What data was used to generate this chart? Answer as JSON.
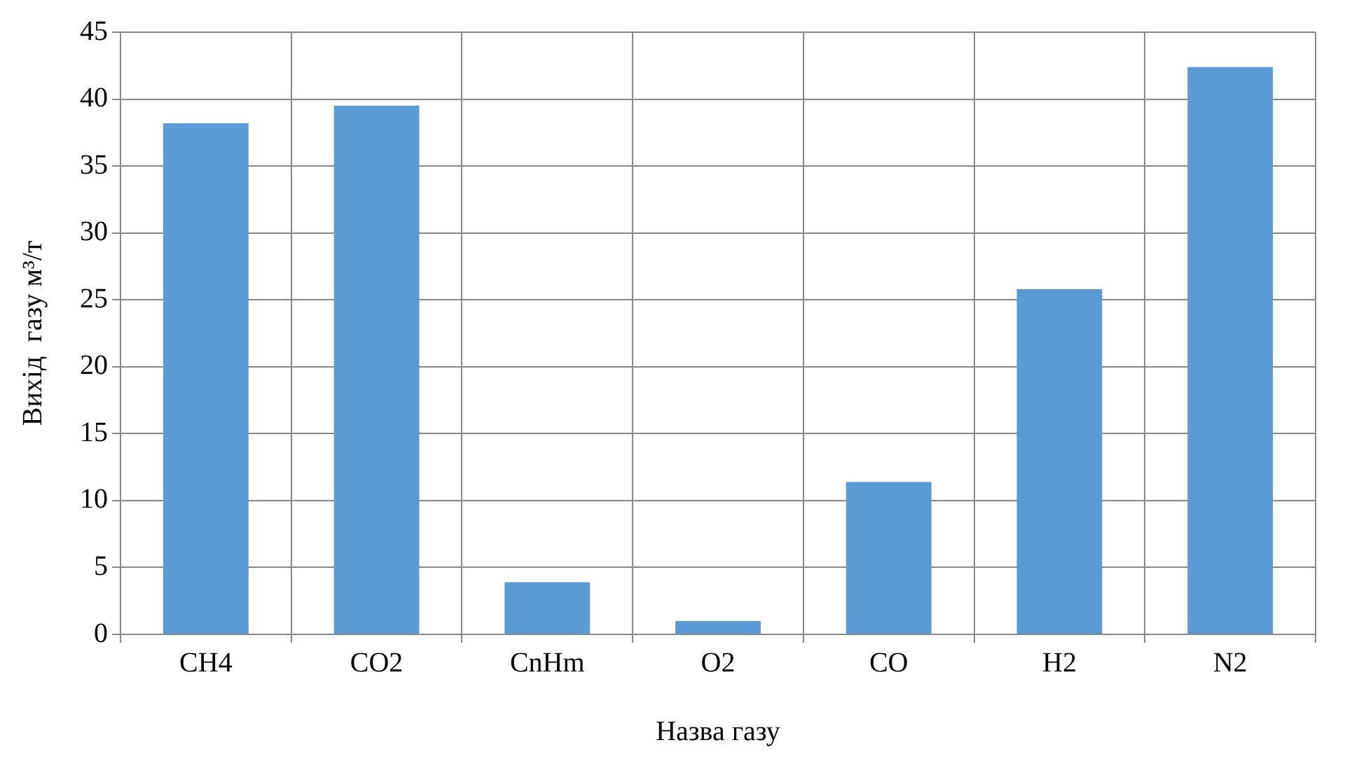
{
  "chart_data": {
    "type": "bar",
    "xlabel": "Назва газу",
    "ylabel": "Вихід  газу м³/т",
    "categories": [
      "CH4",
      "CO2",
      "CnHm",
      "O2",
      "CO",
      "H2",
      "N2"
    ],
    "values": [
      38.2,
      39.5,
      3.9,
      1.0,
      11.4,
      25.8,
      42.4
    ],
    "color": "#5b9bd5",
    "ylim": [
      0,
      45
    ],
    "yticks": [
      0,
      5,
      10,
      15,
      20,
      25,
      30,
      35,
      40,
      45
    ],
    "grid": true,
    "legend": false
  }
}
